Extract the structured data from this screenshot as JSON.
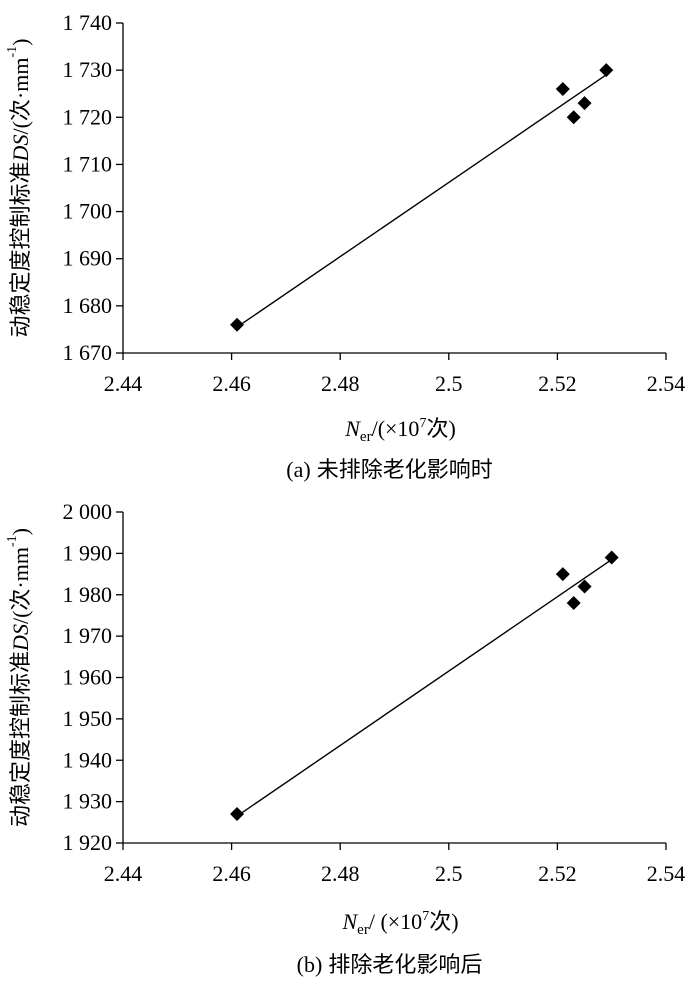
{
  "chart_data": [
    {
      "type": "scatter",
      "panel_label": "(a)",
      "caption_text": "未排除老化影响时",
      "ylabel": "动稳定度控制标准",
      "ylabel_var": "DS",
      "ylabel_unit_open": "/(次·mm",
      "ylabel_unit_sup": "-1",
      "ylabel_unit_close": ")",
      "xlabel_var": "N",
      "xlabel_sub": "er",
      "xlabel_mid": "/(×10",
      "xlabel_sup": "7",
      "xlabel_end": "次)",
      "xlim": [
        2.44,
        2.54
      ],
      "ylim": [
        1670,
        1740
      ],
      "x_ticks": [
        2.44,
        2.46,
        2.48,
        2.5,
        2.52,
        2.54
      ],
      "x_tick_labels": [
        "2.44",
        "2.46",
        "2.48",
        "2.5",
        "2.52",
        "2.54"
      ],
      "y_ticks": [
        1670,
        1680,
        1690,
        1700,
        1710,
        1720,
        1730,
        1740
      ],
      "y_tick_labels": [
        "1 670",
        "1 680",
        "1 690",
        "1 700",
        "1 710",
        "1 720",
        "1 730",
        "1 740"
      ],
      "points": [
        {
          "x": 2.461,
          "y": 1676
        },
        {
          "x": 2.521,
          "y": 1726
        },
        {
          "x": 2.523,
          "y": 1720
        },
        {
          "x": 2.525,
          "y": 1723
        },
        {
          "x": 2.529,
          "y": 1730
        }
      ],
      "trendline": {
        "x": [
          2.461,
          2.529
        ],
        "y": [
          1675.5,
          1729
        ]
      },
      "marker": "diamond",
      "grid": false,
      "legend": "none"
    },
    {
      "type": "scatter",
      "panel_label": "(b)",
      "caption_text": "排除老化影响后",
      "ylabel": "动稳定度控制标准",
      "ylabel_var": "DS",
      "ylabel_unit_open": "/(次·mm",
      "ylabel_unit_sup": "-1",
      "ylabel_unit_close": ")",
      "xlabel_var": "N",
      "xlabel_sub": "er",
      "xlabel_mid": "/ (×10",
      "xlabel_sup": "7",
      "xlabel_end": "次)",
      "xlim": [
        2.44,
        2.54
      ],
      "ylim": [
        1920,
        2000
      ],
      "x_ticks": [
        2.44,
        2.46,
        2.48,
        2.5,
        2.52,
        2.54
      ],
      "x_tick_labels": [
        "2.44",
        "2.46",
        "2.48",
        "2.5",
        "2.52",
        "2.54"
      ],
      "y_ticks": [
        1920,
        1930,
        1940,
        1950,
        1960,
        1970,
        1980,
        1990,
        2000
      ],
      "y_tick_labels": [
        "1 920",
        "1 930",
        "1 940",
        "1 950",
        "1 960",
        "1 970",
        "1 980",
        "1 990",
        "2 000"
      ],
      "points": [
        {
          "x": 2.461,
          "y": 1927
        },
        {
          "x": 2.521,
          "y": 1985
        },
        {
          "x": 2.523,
          "y": 1978
        },
        {
          "x": 2.525,
          "y": 1982
        },
        {
          "x": 2.53,
          "y": 1989
        }
      ],
      "trendline": {
        "x": [
          2.461,
          2.53
        ],
        "y": [
          1926.5,
          1988.5
        ]
      },
      "marker": "diamond",
      "grid": false,
      "legend": "none"
    }
  ]
}
